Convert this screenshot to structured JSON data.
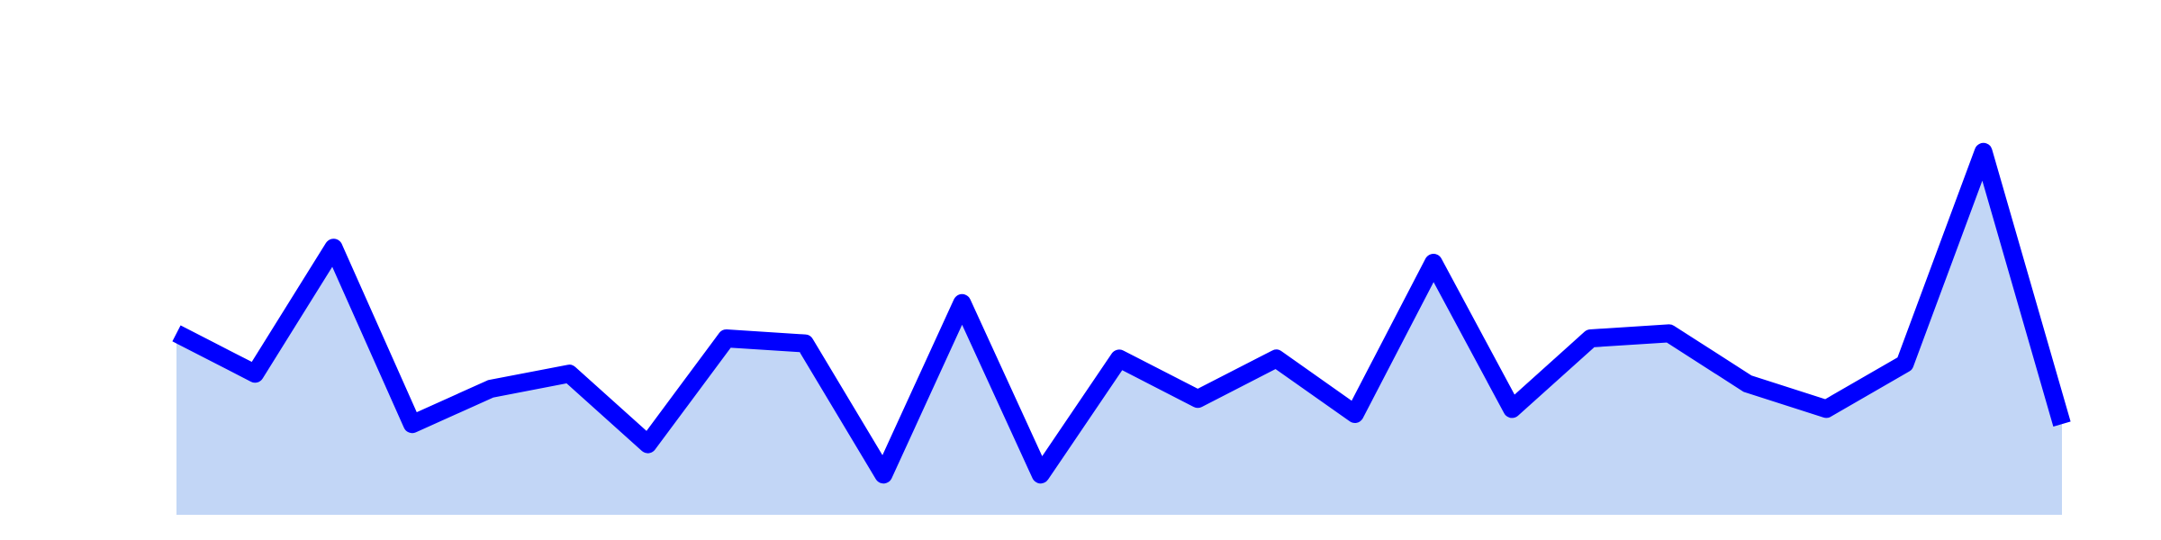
{
  "chart_data": {
    "type": "area",
    "title": "",
    "xlabel": "",
    "ylabel": "",
    "x": [
      0,
      1,
      2,
      3,
      4,
      5,
      6,
      7,
      8,
      9,
      10,
      11,
      12,
      13,
      14,
      15,
      16,
      17,
      18,
      19,
      20,
      21,
      22,
      23,
      24
    ],
    "values": [
      0.36,
      0.28,
      0.53,
      0.18,
      0.25,
      0.28,
      0.14,
      0.35,
      0.34,
      0.08,
      0.42,
      0.08,
      0.31,
      0.23,
      0.31,
      0.2,
      0.5,
      0.21,
      0.35,
      0.36,
      0.26,
      0.21,
      0.3,
      0.72,
      0.18
    ],
    "ylim": [
      0,
      1
    ],
    "grid": false,
    "axes_visible": false,
    "line_color": "#0000ff",
    "fill_color": "#c2d6f6"
  }
}
